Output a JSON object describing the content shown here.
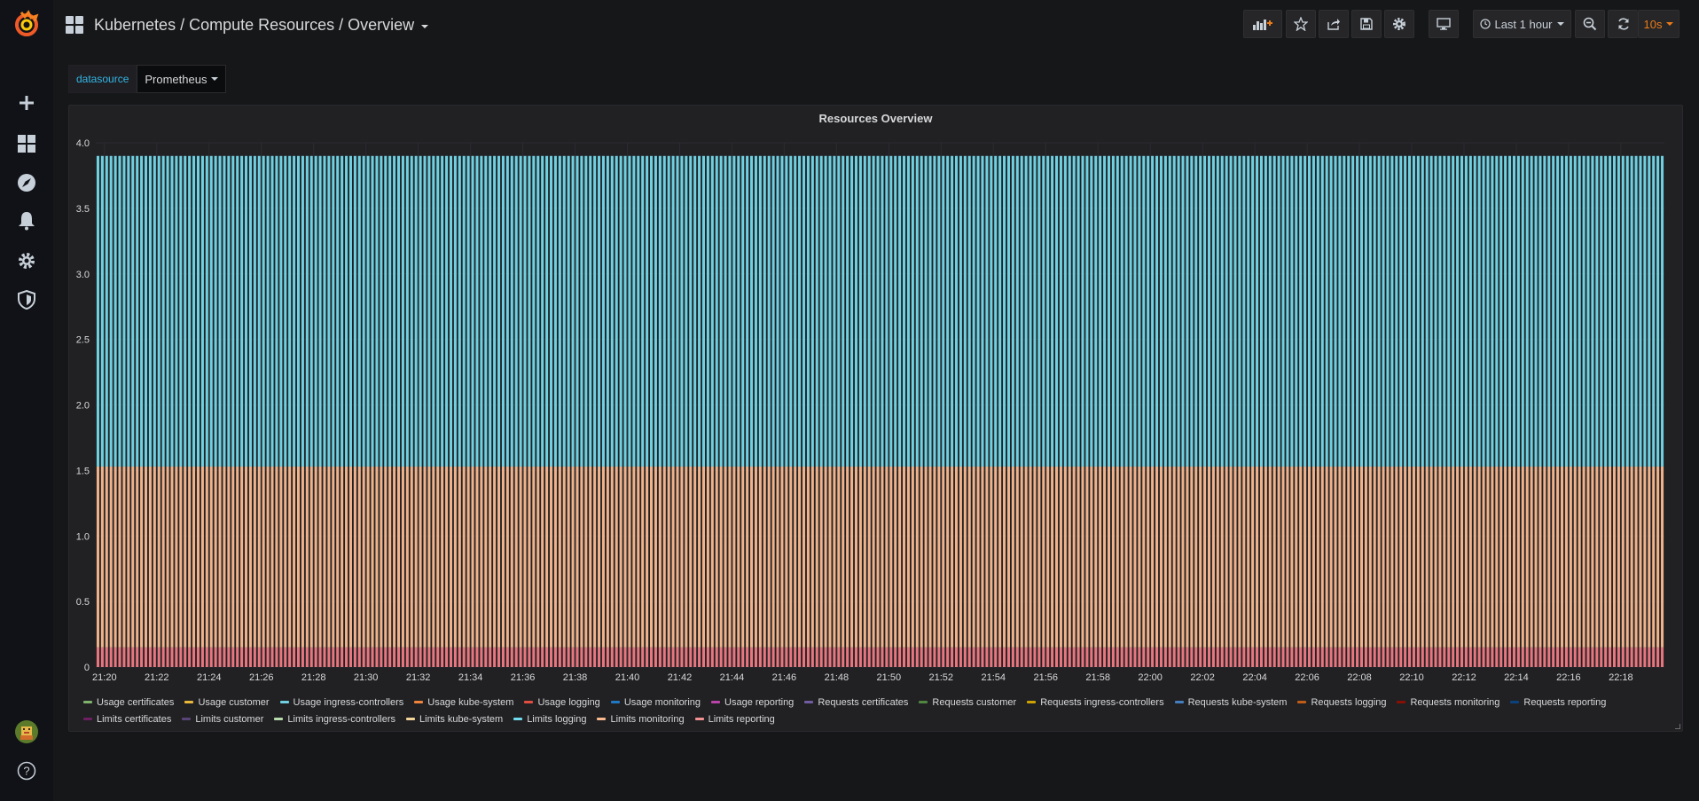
{
  "app": {
    "breadcrumb": "Kubernetes / Compute Resources / Overview",
    "brand_color": "#f05a28"
  },
  "sidebar": {
    "items": [
      {
        "icon": "grafana-logo-icon"
      },
      {
        "icon": "plus-icon",
        "label": "Create"
      },
      {
        "icon": "dashboards-icon",
        "label": "Dashboards"
      },
      {
        "icon": "explore-icon",
        "label": "Explore"
      },
      {
        "icon": "bell-icon",
        "label": "Alerting"
      },
      {
        "icon": "gear-icon",
        "label": "Configuration"
      },
      {
        "icon": "shield-icon",
        "label": "Server Admin"
      },
      {
        "icon": "avatar-icon",
        "label": "Profile"
      },
      {
        "icon": "help-icon",
        "label": "Help"
      }
    ]
  },
  "toolbar": {
    "time_range": "Last 1 hour",
    "refresh_interval": "10s",
    "refresh_color": "#eb7b18",
    "buttons": [
      "add-panel",
      "star",
      "share",
      "save",
      "settings",
      "tv-mode",
      "time-picker",
      "zoom-out",
      "refresh"
    ]
  },
  "variables": {
    "datasource_label": "datasource",
    "datasource_value": "Prometheus"
  },
  "chart_data": {
    "type": "bar",
    "stacked": true,
    "title": "Resources Overview",
    "ylim": [
      0,
      4.0
    ],
    "y_ticks": [
      "0",
      "0.5",
      "1.0",
      "1.5",
      "2.0",
      "2.5",
      "3.0",
      "3.5",
      "4.0"
    ],
    "x_ticks": [
      "21:20",
      "21:22",
      "21:24",
      "21:26",
      "21:28",
      "21:30",
      "21:32",
      "21:34",
      "21:36",
      "21:38",
      "21:40",
      "21:42",
      "21:44",
      "21:46",
      "21:48",
      "21:50",
      "21:52",
      "21:54",
      "21:56",
      "21:58",
      "22:00",
      "22:02",
      "22:04",
      "22:06",
      "22:08",
      "22:10",
      "22:12",
      "22:14",
      "22:16",
      "22:18"
    ],
    "x_range": [
      "21:19:40",
      "22:19:40"
    ],
    "series": [
      {
        "name": "Limits reporting",
        "color": "#e8767f",
        "value": 0.15
      },
      {
        "name": "Limits monitoring",
        "color": "#f0b28a",
        "value": 1.38
      },
      {
        "name": "Limits logging",
        "color": "#6ed0e0",
        "value": 0.69
      },
      {
        "name": "Limits logging",
        "color": "#6ed0e0",
        "value": 1.68
      }
    ],
    "grid": true,
    "legend_position": "bottom",
    "legend": [
      {
        "name": "Usage certificates",
        "color": "#7eb26d"
      },
      {
        "name": "Usage customer",
        "color": "#eab839"
      },
      {
        "name": "Usage ingress-controllers",
        "color": "#6ed0e0"
      },
      {
        "name": "Usage kube-system",
        "color": "#ef843c"
      },
      {
        "name": "Usage logging",
        "color": "#e24d42"
      },
      {
        "name": "Usage monitoring",
        "color": "#1f78c1"
      },
      {
        "name": "Usage reporting",
        "color": "#ba43a9"
      },
      {
        "name": "Requests certificates",
        "color": "#705da0"
      },
      {
        "name": "Requests customer",
        "color": "#508642"
      },
      {
        "name": "Requests ingress-controllers",
        "color": "#cca300"
      },
      {
        "name": "Requests kube-system",
        "color": "#447ebc"
      },
      {
        "name": "Requests logging",
        "color": "#c15c17"
      },
      {
        "name": "Requests monitoring",
        "color": "#890f02"
      },
      {
        "name": "Requests reporting",
        "color": "#0a437c"
      },
      {
        "name": "Limits certificates",
        "color": "#6d1f62"
      },
      {
        "name": "Limits customer",
        "color": "#584477"
      },
      {
        "name": "Limits ingress-controllers",
        "color": "#b7dbab"
      },
      {
        "name": "Limits kube-system",
        "color": "#f4d598"
      },
      {
        "name": "Limits logging",
        "color": "#70dbed"
      },
      {
        "name": "Limits monitoring",
        "color": "#f9ba8f"
      },
      {
        "name": "Limits reporting",
        "color": "#f29191"
      }
    ]
  }
}
